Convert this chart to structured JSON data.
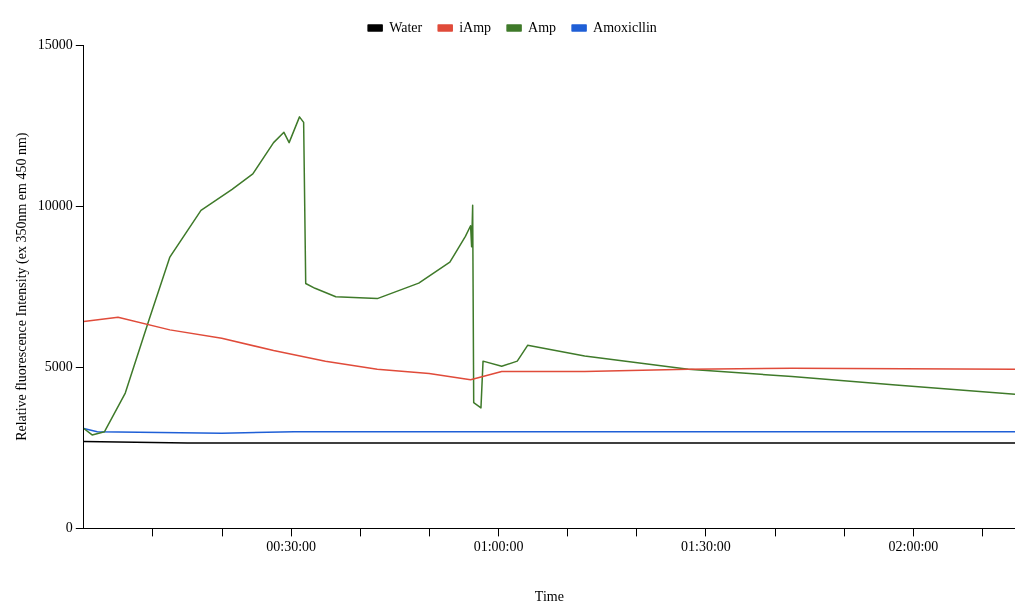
{
  "chart_data": {
    "type": "line",
    "xlabel": "Time",
    "ylabel": "Relative fluorescence Intensity (ex 350nm em 450 nm)",
    "xlim": [
      0,
      2.245
    ],
    "ylim": [
      0,
      15000
    ],
    "xticks": [
      {
        "value": 0.1667,
        "label": null
      },
      {
        "value": 0.3333,
        "label": null
      },
      {
        "value": 0.5,
        "label": "00:30:00"
      },
      {
        "value": 0.6667,
        "label": null
      },
      {
        "value": 0.8333,
        "label": null
      },
      {
        "value": 1,
        "label": "01:00:00"
      },
      {
        "value": 1.1667,
        "label": null
      },
      {
        "value": 1.3333,
        "label": null
      },
      {
        "value": 1.5,
        "label": "01:30:00"
      },
      {
        "value": 1.6667,
        "label": null
      },
      {
        "value": 1.8333,
        "label": null
      },
      {
        "value": 2,
        "label": "02:00:00"
      },
      {
        "value": 2.1667,
        "label": null
      }
    ],
    "yticks": [
      0,
      5000,
      10000,
      15000
    ],
    "grid": false,
    "legend": "top",
    "marker": "none",
    "line_style": "solid",
    "series": [
      {
        "name": "Water",
        "color": "#000000",
        "x": [
          0,
          0.25,
          0.5,
          0.75,
          1,
          1.25,
          1.5,
          1.75,
          2,
          2.245
        ],
        "values": [
          2700,
          2650,
          2650,
          2650,
          2650,
          2650,
          2650,
          2650,
          2650,
          2650
        ]
      },
      {
        "name": "iAmp",
        "color": "#e04b3a",
        "x": [
          0,
          0.0825,
          0.2075,
          0.3325,
          0.4575,
          0.5825,
          0.7075,
          0.8325,
          0.9325,
          1.0075,
          1.2075,
          1.4575,
          1.7075,
          2.245
        ],
        "values": [
          6420,
          6550,
          6160,
          5900,
          5520,
          5190,
          4940,
          4810,
          4610,
          4870,
          4870,
          4940,
          4970,
          4940
        ]
      },
      {
        "name": "Amp",
        "color": "#3f7a2a",
        "x": [
          0,
          0.02,
          0.05,
          0.1,
          0.1575,
          0.2075,
          0.2825,
          0.3575,
          0.4075,
          0.4575,
          0.4825,
          0.495,
          0.52,
          0.53,
          0.535,
          0.5575,
          0.6075,
          0.7075,
          0.8075,
          0.8825,
          0.92,
          0.9325,
          0.935,
          0.9375,
          0.94,
          0.9575,
          0.9625,
          1.0075,
          1.045,
          1.07,
          1.2075,
          1.4575,
          1.7075,
          1.9575,
          2.245
        ],
        "values": [
          3100,
          2900,
          3000,
          4200,
          6480,
          8420,
          9870,
          10520,
          11000,
          11970,
          12290,
          11970,
          12770,
          12600,
          7600,
          7450,
          7190,
          7130,
          7610,
          8260,
          9060,
          9390,
          8740,
          10030,
          3900,
          3740,
          5190,
          5030,
          5190,
          5680,
          5350,
          4940,
          4710,
          4450,
          4160
        ]
      },
      {
        "name": "Amoxicllin",
        "color": "#1f5fd6",
        "x": [
          0,
          0.0325,
          0.3325,
          0.5075,
          1,
          1.5,
          2,
          2.245
        ],
        "values": [
          3100,
          3000,
          2950,
          3000,
          3000,
          3000,
          3000,
          3000
        ]
      }
    ]
  }
}
